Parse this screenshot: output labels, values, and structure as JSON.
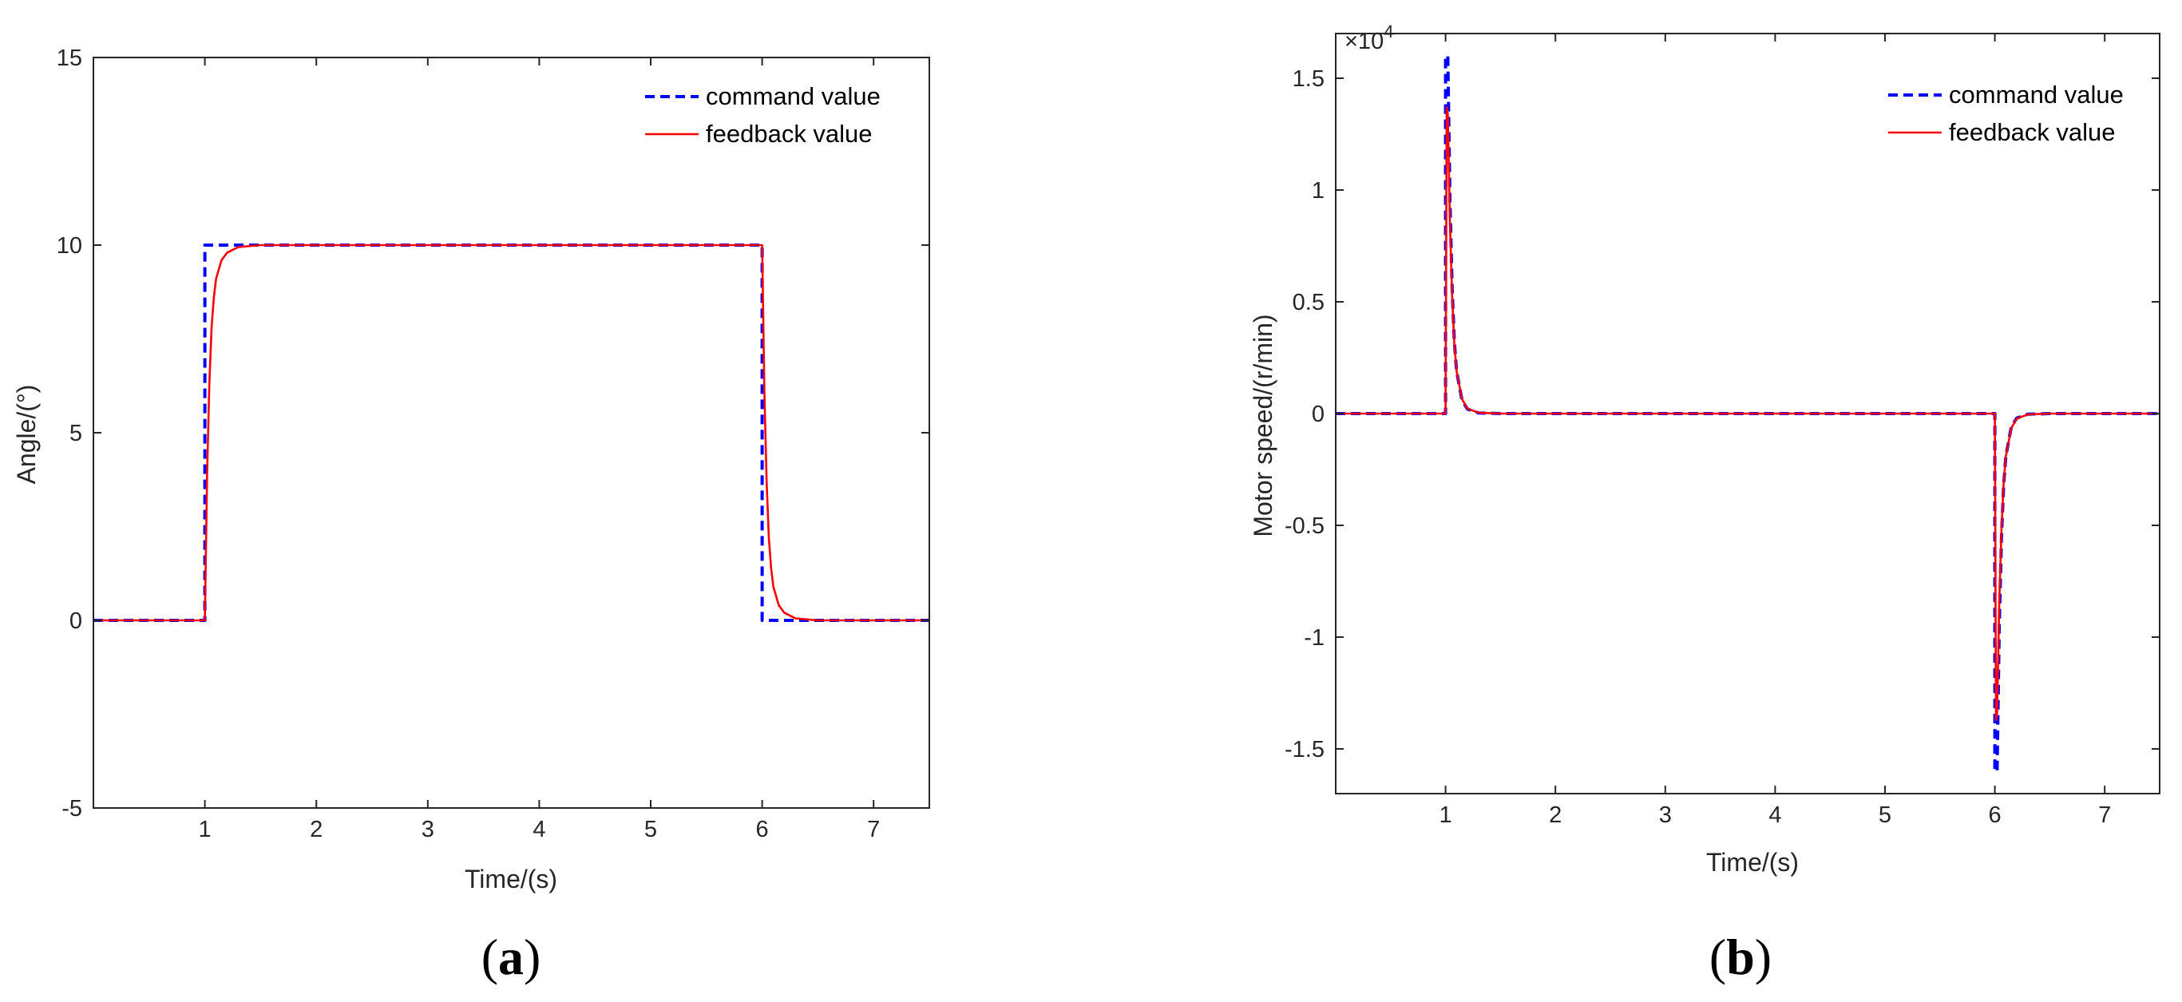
{
  "colors": {
    "command": "#0000ff",
    "feedback": "#ff0000",
    "axes": "#262626",
    "background": "#ffffff"
  },
  "panels": [
    {
      "label_open": "(",
      "label_letter": "a",
      "label_close": ")"
    },
    {
      "label_open": "(",
      "label_letter": "b",
      "label_close": ")"
    }
  ],
  "chart_data": [
    {
      "type": "line",
      "xlabel": "Time/(s)",
      "ylabel": "Angle/(°)",
      "xlim": [
        0,
        7.5
      ],
      "ylim": [
        -5,
        15
      ],
      "xticks": [
        1,
        2,
        3,
        4,
        5,
        6,
        7
      ],
      "xtick_labels": [
        "1",
        "2",
        "3",
        "4",
        "5",
        "6",
        "7"
      ],
      "yticks": [
        -5,
        0,
        5,
        10,
        15
      ],
      "ytick_labels": [
        "-5",
        "0",
        "5",
        "10",
        "15"
      ],
      "grid": false,
      "legend_position": "top-right",
      "series": [
        {
          "name": "command value",
          "style": "dashed",
          "x": [
            0,
            1,
            1,
            6,
            6,
            7.5
          ],
          "y": [
            0,
            0,
            10,
            10,
            0,
            0
          ]
        },
        {
          "name": "feedback value",
          "style": "solid",
          "x": [
            0,
            1,
            1.02,
            1.04,
            1.06,
            1.08,
            1.1,
            1.15,
            1.2,
            1.3,
            1.5,
            2,
            6,
            6.02,
            6.04,
            6.06,
            6.08,
            6.1,
            6.15,
            6.2,
            6.3,
            6.5,
            7.5
          ],
          "y": [
            0,
            0,
            3.9,
            6.3,
            7.8,
            8.6,
            9.1,
            9.6,
            9.8,
            9.95,
            10,
            10,
            10,
            6.1,
            3.7,
            2.2,
            1.4,
            0.9,
            0.4,
            0.2,
            0.05,
            0,
            0
          ]
        }
      ]
    },
    {
      "type": "line",
      "xlabel": "Time/(s)",
      "ylabel": "Motor speed/(r/min)",
      "y_multiplier": "×10",
      "y_multiplier_exponent": "4",
      "xlim": [
        0,
        7.5
      ],
      "ylim": [
        -17000,
        17000
      ],
      "xticks": [
        1,
        2,
        3,
        4,
        5,
        6,
        7
      ],
      "xtick_labels": [
        "1",
        "2",
        "3",
        "4",
        "5",
        "6",
        "7"
      ],
      "yticks": [
        -15000,
        -10000,
        -5000,
        0,
        5000,
        10000,
        15000
      ],
      "ytick_labels": [
        "-1.5",
        "-1",
        "-0.5",
        "0",
        "0.5",
        "1",
        "1.5"
      ],
      "grid": false,
      "legend_position": "top-right",
      "series": [
        {
          "name": "command value",
          "style": "dashed",
          "x": [
            0,
            1,
            1,
            1.02,
            1.04,
            1.06,
            1.08,
            1.1,
            1.15,
            1.2,
            1.3,
            1.5,
            6,
            6,
            6.02,
            6.04,
            6.06,
            6.08,
            6.1,
            6.15,
            6.2,
            6.3,
            6.5,
            7.5
          ],
          "y": [
            0,
            0,
            16000,
            16000,
            9500,
            5500,
            3200,
            1900,
            600,
            200,
            30,
            0,
            0,
            -16000,
            -16000,
            -9500,
            -5500,
            -3200,
            -1900,
            -600,
            -200,
            -30,
            0,
            0
          ]
        },
        {
          "name": "feedback value",
          "style": "solid",
          "x": [
            0,
            1,
            1.01,
            1.02,
            1.04,
            1.06,
            1.08,
            1.1,
            1.15,
            1.2,
            1.3,
            1.5,
            6,
            6.01,
            6.02,
            6.04,
            6.06,
            6.08,
            6.1,
            6.15,
            6.2,
            6.3,
            6.5,
            7.5
          ],
          "y": [
            0,
            0,
            13700,
            13400,
            8500,
            5200,
            3100,
            1900,
            650,
            220,
            40,
            0,
            0,
            -13700,
            -13400,
            -8500,
            -5200,
            -3100,
            -1900,
            -650,
            -220,
            -40,
            0,
            0
          ]
        }
      ]
    }
  ]
}
